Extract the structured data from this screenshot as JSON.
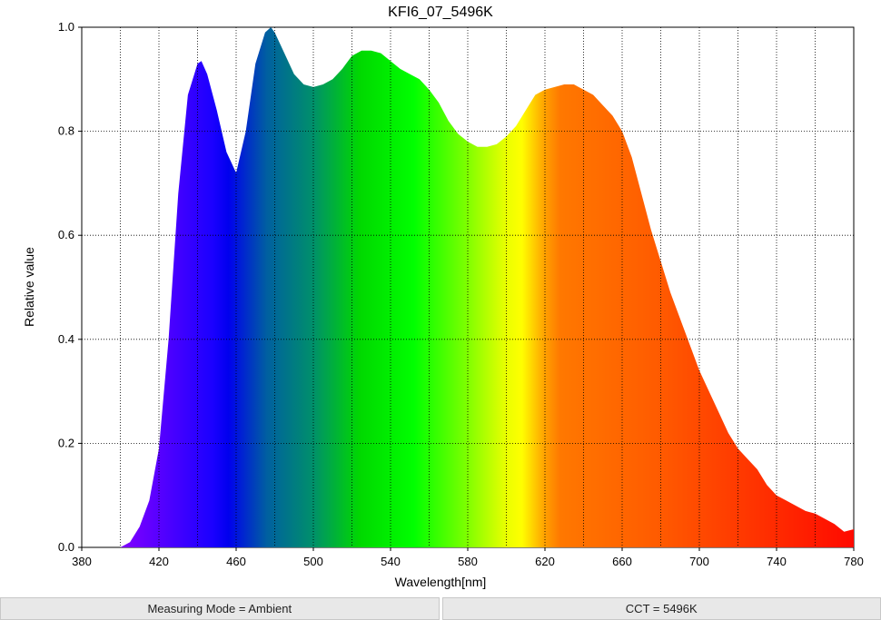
{
  "chart_data": {
    "type": "area",
    "title": "KFI6_07_5496K",
    "x_label": "Wavelength[nm]",
    "y_label": "Relative value",
    "x": [
      400,
      405,
      410,
      415,
      420,
      425,
      430,
      435,
      440,
      442,
      445,
      450,
      455,
      460,
      465,
      470,
      475,
      478,
      480,
      485,
      490,
      495,
      500,
      505,
      510,
      515,
      520,
      525,
      530,
      535,
      540,
      545,
      550,
      555,
      560,
      565,
      570,
      575,
      580,
      585,
      590,
      595,
      600,
      605,
      610,
      615,
      620,
      625,
      630,
      635,
      640,
      645,
      650,
      655,
      660,
      665,
      670,
      675,
      680,
      685,
      690,
      695,
      700,
      705,
      710,
      715,
      720,
      725,
      730,
      735,
      740,
      745,
      750,
      755,
      760,
      765,
      770,
      775,
      780
    ],
    "values": [
      0,
      0.01,
      0.04,
      0.09,
      0.19,
      0.4,
      0.68,
      0.87,
      0.93,
      0.935,
      0.91,
      0.84,
      0.76,
      0.72,
      0.8,
      0.93,
      0.99,
      1.0,
      0.99,
      0.95,
      0.91,
      0.89,
      0.885,
      0.89,
      0.9,
      0.92,
      0.945,
      0.955,
      0.955,
      0.95,
      0.935,
      0.92,
      0.91,
      0.9,
      0.88,
      0.855,
      0.82,
      0.795,
      0.78,
      0.77,
      0.77,
      0.775,
      0.79,
      0.81,
      0.84,
      0.87,
      0.88,
      0.885,
      0.89,
      0.89,
      0.88,
      0.87,
      0.85,
      0.83,
      0.8,
      0.75,
      0.68,
      0.61,
      0.55,
      0.49,
      0.44,
      0.39,
      0.34,
      0.3,
      0.26,
      0.22,
      0.19,
      0.17,
      0.15,
      0.12,
      0.1,
      0.09,
      0.08,
      0.07,
      0.065,
      0.055,
      0.045,
      0.03,
      0.035
    ],
    "xlim": [
      380,
      780
    ],
    "ylim": [
      0,
      1
    ],
    "xticks": [
      380,
      420,
      460,
      500,
      540,
      580,
      620,
      660,
      700,
      740,
      780
    ],
    "yticks": [
      {
        "value": 0,
        "label": "0.0"
      },
      0.2,
      0.4,
      0.6,
      0.8,
      {
        "value": 1,
        "label": "1.0"
      }
    ],
    "xgrid": [
      400,
      420,
      440,
      460,
      480,
      500,
      520,
      540,
      560,
      580,
      600,
      620,
      640,
      660,
      680,
      700,
      720,
      740,
      760
    ],
    "grid": true
  },
  "status_fields": [
    "Measuring Mode = Ambient",
    "CCT = 5496K"
  ]
}
